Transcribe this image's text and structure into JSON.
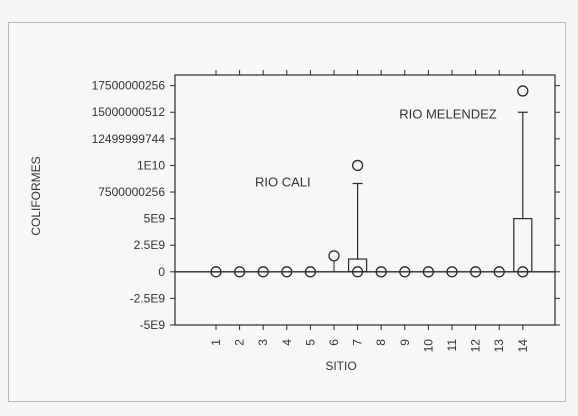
{
  "chart_data": {
    "type": "box",
    "xlabel": "SITIO",
    "ylabel": "COLIFORMES",
    "categories": [
      "1",
      "2",
      "3",
      "4",
      "5",
      "6",
      "7",
      "8",
      "9",
      "10",
      "11",
      "12",
      "13",
      "14"
    ],
    "y_tick_labels": [
      "17500000256",
      "15000000512",
      "12499999744",
      "1E10",
      "7500000256",
      "5E9",
      "2.5E9",
      "0",
      "-2.5E9",
      "-5E9"
    ],
    "y_tick_values": [
      17500000256,
      15000000512,
      12499999744,
      10000000000,
      7500000256,
      5000000000,
      2500000000,
      0,
      -2500000000,
      -5000000000
    ],
    "ylim": [
      -5000000000,
      18500000000
    ],
    "boxes": [
      {
        "site": "1",
        "median": 0,
        "outliers": [
          0
        ]
      },
      {
        "site": "2",
        "median": 0,
        "outliers": [
          0
        ]
      },
      {
        "site": "3",
        "median": 0,
        "outliers": [
          0
        ]
      },
      {
        "site": "4",
        "median": 0,
        "outliers": [
          0
        ]
      },
      {
        "site": "5",
        "median": 0,
        "outliers": [
          0
        ]
      },
      {
        "site": "6",
        "q1": 0,
        "q3": 0,
        "median": 0,
        "whisker_high": 0,
        "outliers": [
          1500000000
        ]
      },
      {
        "site": "7",
        "q1": 0,
        "q3": 1200000000,
        "median": 0,
        "whisker_high": 8300000000,
        "outliers": [
          10000000000,
          0
        ]
      },
      {
        "site": "8",
        "median": 0,
        "outliers": [
          0
        ]
      },
      {
        "site": "9",
        "median": 0,
        "outliers": [
          0
        ]
      },
      {
        "site": "10",
        "median": 0,
        "outliers": [
          0
        ]
      },
      {
        "site": "11",
        "median": 0,
        "outliers": [
          0
        ]
      },
      {
        "site": "12",
        "median": 0,
        "outliers": [
          0
        ]
      },
      {
        "site": "13",
        "median": 0,
        "outliers": [
          0
        ]
      },
      {
        "site": "14",
        "q1": 0,
        "q3": 5000000000,
        "median": 0,
        "whisker_high": 15000000000,
        "outliers": [
          17000000000,
          0
        ]
      }
    ],
    "annotations": [
      {
        "text": "RIO CALI",
        "x": "4",
        "y": 8000000000
      },
      {
        "text": "RIO MELENDEZ",
        "x": "11",
        "y": 14400000000
      }
    ],
    "grid": false,
    "reference_line_at_zero": true,
    "colors": {
      "line": "#2a2a2a",
      "background": "#f7f7f5"
    }
  }
}
